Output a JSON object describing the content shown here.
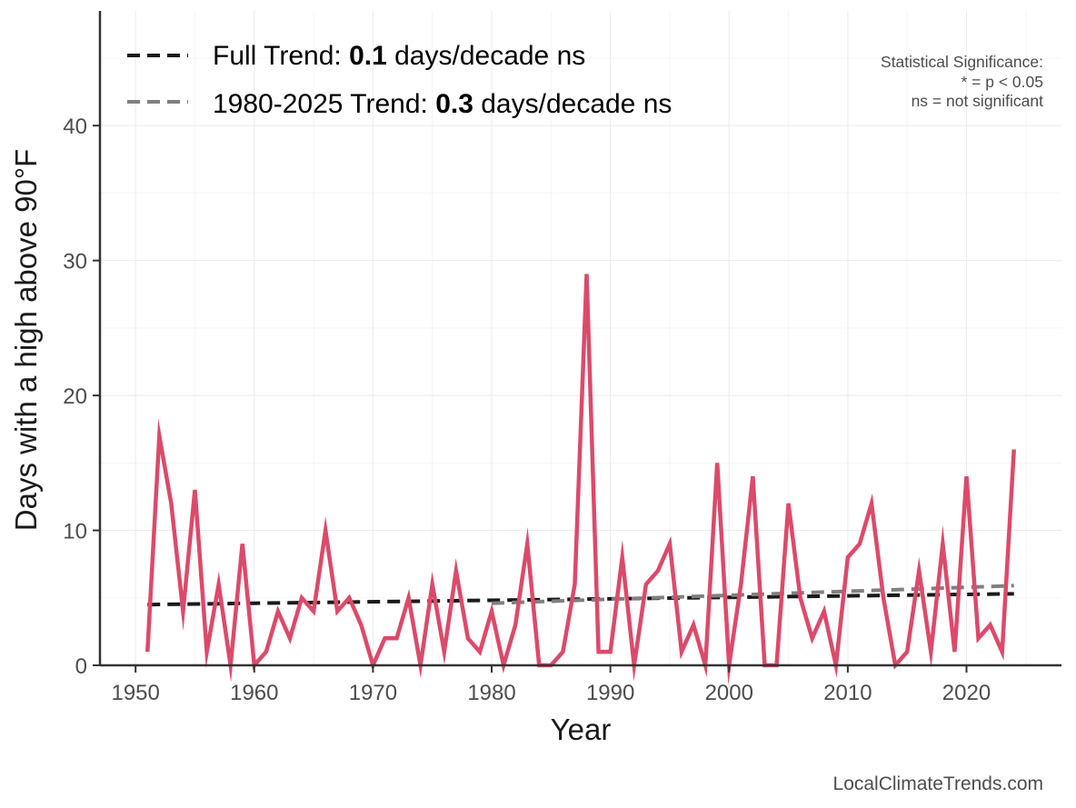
{
  "chart_data": {
    "type": "line",
    "title": "",
    "xlabel": "Year",
    "ylabel": "Days with a high above 90°F",
    "xlim": [
      1947,
      2028
    ],
    "ylim": [
      0,
      48.5
    ],
    "x_ticks": [
      1950,
      1960,
      1970,
      1980,
      1990,
      2000,
      2010,
      2020
    ],
    "y_ticks": [
      0,
      10,
      20,
      30,
      40
    ],
    "grid": true,
    "legend_position": "top-left",
    "series": [
      {
        "name": "Days above 90°F",
        "color": "#dc4a6a",
        "x": [
          1951,
          1952,
          1953,
          1954,
          1955,
          1956,
          1957,
          1958,
          1959,
          1960,
          1961,
          1962,
          1963,
          1964,
          1965,
          1966,
          1967,
          1968,
          1969,
          1970,
          1971,
          1972,
          1973,
          1974,
          1975,
          1976,
          1977,
          1978,
          1979,
          1980,
          1981,
          1982,
          1983,
          1984,
          1985,
          1986,
          1987,
          1988,
          1989,
          1990,
          1991,
          1992,
          1993,
          1994,
          1995,
          1996,
          1997,
          1998,
          1999,
          2000,
          2001,
          2002,
          2003,
          2004,
          2005,
          2006,
          2007,
          2008,
          2009,
          2010,
          2011,
          2012,
          2013,
          2014,
          2015,
          2016,
          2017,
          2018,
          2019,
          2020,
          2021,
          2022,
          2023,
          2024
        ],
        "values": [
          1,
          17,
          12,
          4,
          13,
          1,
          6,
          0,
          9,
          0,
          1,
          4,
          2,
          5,
          4,
          10,
          4,
          5,
          3,
          0,
          2,
          2,
          5,
          0,
          6,
          1,
          7,
          2,
          1,
          4,
          0,
          3,
          9,
          0,
          0,
          1,
          6,
          29,
          1,
          1,
          8,
          0,
          6,
          7,
          9,
          1,
          3,
          0,
          15,
          0,
          6,
          14,
          0,
          0,
          12,
          5,
          2,
          4,
          0,
          8,
          9,
          12,
          5,
          0,
          1,
          7,
          1,
          9,
          1,
          14,
          2,
          3,
          1,
          16
        ]
      }
    ],
    "trends": [
      {
        "name": "Full Trend",
        "color": "#1a1a1a",
        "x": [
          1951,
          2024
        ],
        "values": [
          4.5,
          5.3
        ]
      },
      {
        "name": "1980-2025 Trend",
        "color": "#808080",
        "x": [
          1980,
          2024
        ],
        "values": [
          4.6,
          5.9
        ]
      }
    ],
    "legend": [
      {
        "prefix": "Full Trend: ",
        "value": "0.1",
        "suffix": " days/decade ns",
        "color": "#1a1a1a"
      },
      {
        "prefix": "1980-2025 Trend: ",
        "value": "0.3",
        "suffix": " days/decade ns",
        "color": "#808080"
      }
    ],
    "annotations": {
      "significance_title": "Statistical Significance:",
      "significance_line1": "* = p < 0.05",
      "significance_line2": "ns = not significant",
      "source": "LocalClimateTrends.com"
    }
  }
}
